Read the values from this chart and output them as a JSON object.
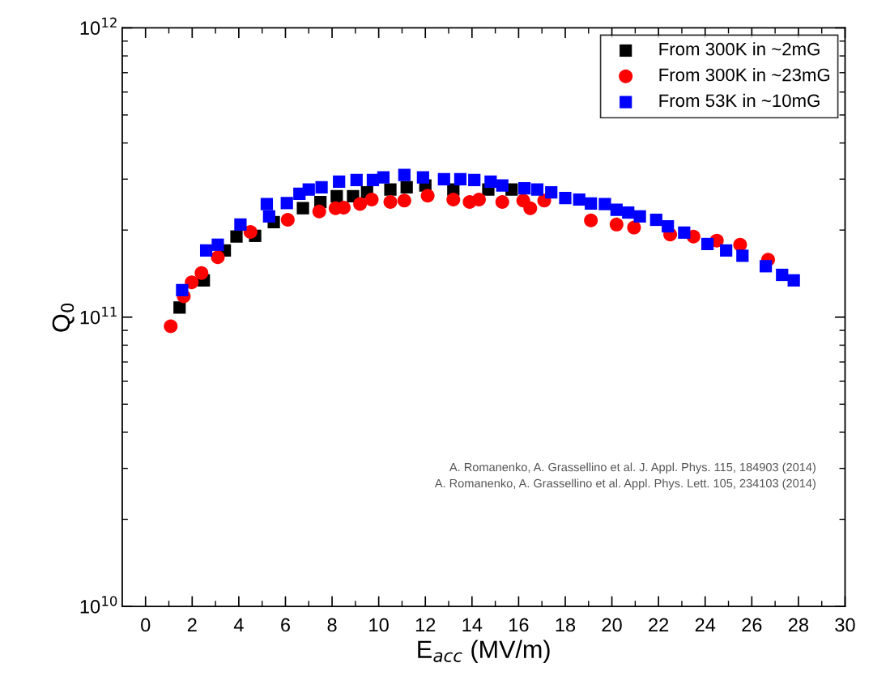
{
  "chart_data": {
    "type": "scatter",
    "xlabel": "E$_{acc}$ (MV/m)",
    "ylabel": "Q$_{0}$",
    "log": "y",
    "xlim": [
      -1,
      30
    ],
    "xticks": [
      0,
      2,
      4,
      6,
      8,
      10,
      12,
      14,
      16,
      18,
      20,
      22,
      24,
      26,
      28,
      30
    ],
    "ylim": [
      10000000000.0,
      1000000000000.0
    ],
    "yticks": [
      {
        "value": 10000000000.0,
        "label": "10$^{10}$"
      },
      {
        "value": 100000000000.0,
        "label": "10$^{11}$"
      },
      {
        "value": 1000000000000.0,
        "label": "10$^{12}$"
      }
    ],
    "grid": false,
    "legend": "top right",
    "annotations": [
      "A. Romanenko, A. Grassellino et al. J. Appl. Phys. 115, 184903 (2014)\nA. Romanenko, A. Grassellino et al. Appl. Phys. Lett. 105, 234103 (2014)"
    ],
    "series": [
      {
        "name": "From 300K in ~2mG",
        "color": "#000000",
        "marker": "square",
        "x": [
          1.46,
          2.5,
          3.4,
          3.9,
          4.7,
          5.5,
          6.75,
          7.5,
          8.2,
          8.9,
          9.5,
          10.5,
          11.2,
          12.0,
          13.2,
          14.7,
          15.7
        ],
        "values": [
          108000000000.0,
          134000000000.0,
          170000000000.0,
          190000000000.0,
          191000000000.0,
          213000000000.0,
          238000000000.0,
          250000000000.0,
          262000000000.0,
          262000000000.0,
          270000000000.0,
          276000000000.0,
          281000000000.0,
          285000000000.0,
          276000000000.0,
          276000000000.0,
          276000000000.0
        ]
      },
      {
        "name": "From 300K in ~23mG",
        "color": "#ff0000",
        "marker": "circle",
        "x": [
          1.08,
          1.64,
          1.98,
          2.4,
          3.1,
          4.5,
          6.1,
          7.45,
          8.15,
          8.5,
          9.2,
          9.7,
          10.5,
          11.1,
          12.1,
          13.2,
          13.9,
          14.3,
          15.3,
          16.2,
          16.5,
          17.1,
          19.1,
          20.2,
          20.95,
          22.5,
          23.5,
          24.5,
          25.5,
          26.7
        ],
        "values": [
          93000000000.0,
          118000000000.0,
          132000000000.0,
          142000000000.0,
          161000000000.0,
          197000000000.0,
          217000000000.0,
          232000000000.0,
          238000000000.0,
          239000000000.0,
          246000000000.0,
          255000000000.0,
          250000000000.0,
          253000000000.0,
          263000000000.0,
          255000000000.0,
          250000000000.0,
          255000000000.0,
          250000000000.0,
          253000000000.0,
          238000000000.0,
          253000000000.0,
          216000000000.0,
          209000000000.0,
          204000000000.0,
          193000000000.0,
          190000000000.0,
          184000000000.0,
          178000000000.0,
          158000000000.0
        ]
      },
      {
        "name": "From 53K in ~10mG",
        "color": "#0000ff",
        "marker": "square",
        "x": [
          1.57,
          2.6,
          3.1,
          4.07,
          5.2,
          5.3,
          6.06,
          6.6,
          7.0,
          7.55,
          8.3,
          9.05,
          9.75,
          10.2,
          11.1,
          11.9,
          12.8,
          13.5,
          14.1,
          14.8,
          15.3,
          16.25,
          16.8,
          17.4,
          18.0,
          18.6,
          19.1,
          19.7,
          20.2,
          20.7,
          21.2,
          21.9,
          22.4,
          23.1,
          24.1,
          24.9,
          25.6,
          26.6,
          27.3,
          27.8
        ],
        "values": [
          124000000000.0,
          170000000000.0,
          178000000000.0,
          209000000000.0,
          246000000000.0,
          223000000000.0,
          248000000000.0,
          267000000000.0,
          276000000000.0,
          281000000000.0,
          294000000000.0,
          298000000000.0,
          298000000000.0,
          304000000000.0,
          310000000000.0,
          304000000000.0,
          300000000000.0,
          300000000000.0,
          298000000000.0,
          294000000000.0,
          285000000000.0,
          279000000000.0,
          276000000000.0,
          270000000000.0,
          258000000000.0,
          255000000000.0,
          247000000000.0,
          246000000000.0,
          235000000000.0,
          230000000000.0,
          223000000000.0,
          217000000000.0,
          206000000000.0,
          196000000000.0,
          179000000000.0,
          170000000000.0,
          163000000000.0,
          150000000000.0,
          140000000000.0,
          134000000000.0
        ]
      }
    ]
  }
}
